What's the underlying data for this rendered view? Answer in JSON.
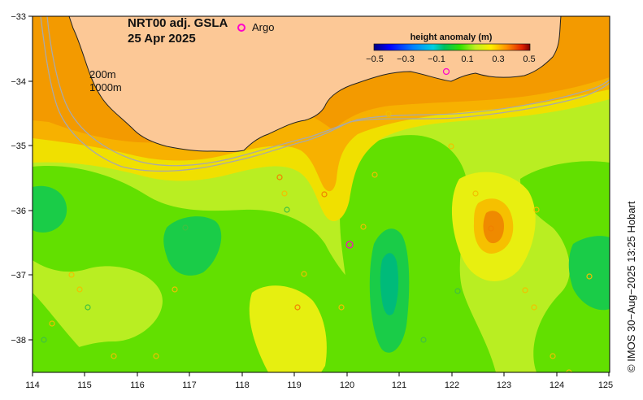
{
  "title_line1": "NRT00 adj. GSLA",
  "title_line2": "25 Apr 2025",
  "legend": {
    "marker_label": "Argo",
    "marker_color": "#ff00cc"
  },
  "isobaths": {
    "label_200": "200m",
    "label_1000": "1000m",
    "color": "#a9a9a9"
  },
  "colorbar": {
    "title": "height anomaly (m)",
    "ticks": [
      "−0.5",
      "−0.3",
      "−0.1",
      "0.1",
      "0.3",
      "0.5"
    ],
    "colors": [
      "#00007f",
      "#0000ff",
      "#0080ff",
      "#00d0e0",
      "#00c060",
      "#30e000",
      "#c0f020",
      "#ffee00",
      "#ffa000",
      "#ff5000",
      "#c00000",
      "#7f0000"
    ]
  },
  "axes": {
    "lon_ticks": [
      "114",
      "115",
      "116",
      "117",
      "118",
      "119",
      "120",
      "121",
      "122",
      "123",
      "124",
      "125"
    ],
    "lat_ticks": [
      "−33",
      "−34",
      "−35",
      "−36",
      "−37",
      "−38"
    ]
  },
  "credit": "© IMOS 30−Aug−2025 13:25 Hobart",
  "colors": {
    "land": "#fcc896"
  }
}
